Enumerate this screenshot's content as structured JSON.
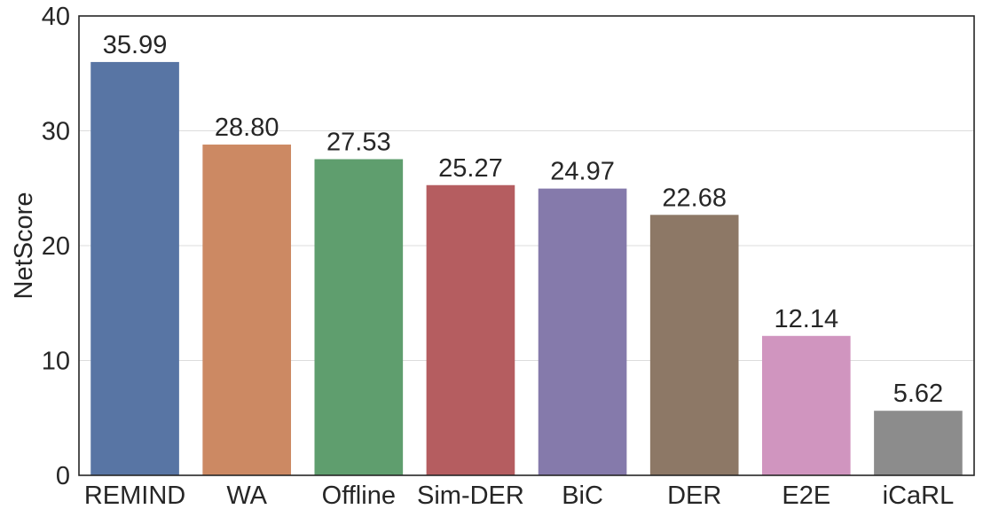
{
  "chart_data": {
    "type": "bar",
    "title": "",
    "xlabel": "",
    "ylabel": "NetScore",
    "ylim": [
      0,
      40
    ],
    "yticks": [
      0,
      10,
      20,
      30,
      40
    ],
    "grid": true,
    "categories": [
      "REMIND",
      "WA",
      "Offline",
      "Sim-DER",
      "BiC",
      "DER",
      "E2E",
      "iCaRL"
    ],
    "values": [
      35.99,
      28.8,
      27.53,
      25.27,
      24.97,
      22.68,
      12.14,
      5.62
    ],
    "data_labels": [
      "35.99",
      "28.80",
      "27.53",
      "25.27",
      "24.97",
      "22.68",
      "12.14",
      "5.62"
    ],
    "colors": [
      "#5875a4",
      "#cc8963",
      "#5f9e6e",
      "#b55d60",
      "#857aab",
      "#8d7866",
      "#d095bf",
      "#8c8c8c"
    ]
  }
}
